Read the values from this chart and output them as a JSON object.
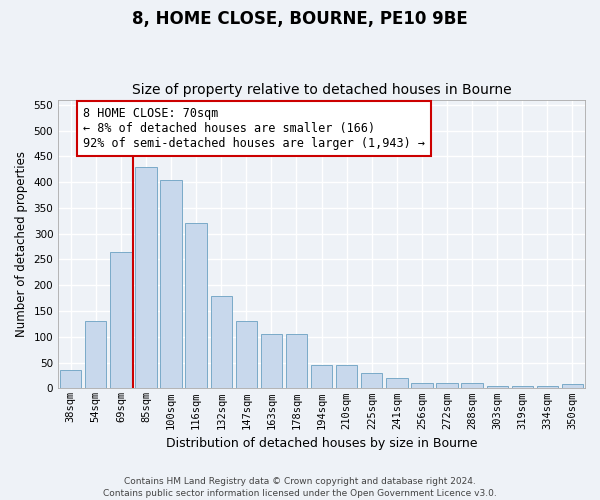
{
  "title": "8, HOME CLOSE, BOURNE, PE10 9BE",
  "subtitle": "Size of property relative to detached houses in Bourne",
  "xlabel": "Distribution of detached houses by size in Bourne",
  "ylabel": "Number of detached properties",
  "categories": [
    "38sqm",
    "54sqm",
    "69sqm",
    "85sqm",
    "100sqm",
    "116sqm",
    "132sqm",
    "147sqm",
    "163sqm",
    "178sqm",
    "194sqm",
    "210sqm",
    "225sqm",
    "241sqm",
    "256sqm",
    "272sqm",
    "288sqm",
    "303sqm",
    "319sqm",
    "334sqm",
    "350sqm"
  ],
  "values": [
    35,
    130,
    265,
    430,
    405,
    320,
    180,
    130,
    105,
    105,
    45,
    45,
    30,
    20,
    10,
    10,
    10,
    5,
    5,
    5,
    8
  ],
  "bar_color": "#c8d8ec",
  "bar_edge_color": "#7aaac8",
  "vline_x": 2.5,
  "vline_color": "#cc0000",
  "annotation_line1": "8 HOME CLOSE: 70sqm",
  "annotation_line2": "← 8% of detached houses are smaller (166)",
  "annotation_line3": "92% of semi-detached houses are larger (1,943) →",
  "annotation_box_color": "#ffffff",
  "annotation_box_edge": "#cc0000",
  "ylim": [
    0,
    560
  ],
  "yticks": [
    0,
    50,
    100,
    150,
    200,
    250,
    300,
    350,
    400,
    450,
    500,
    550
  ],
  "background_color": "#eef2f7",
  "grid_color": "#ffffff",
  "footer": "Contains HM Land Registry data © Crown copyright and database right 2024.\nContains public sector information licensed under the Open Government Licence v3.0.",
  "title_fontsize": 12,
  "subtitle_fontsize": 10,
  "xlabel_fontsize": 9,
  "ylabel_fontsize": 8.5,
  "tick_fontsize": 7.5,
  "annotation_fontsize": 8.5,
  "footer_fontsize": 6.5
}
